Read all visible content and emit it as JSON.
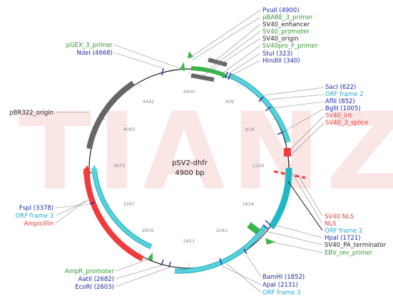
{
  "plasmid": {
    "name": "pSV2-dhfr",
    "length": "4900 bp",
    "watermark": "TIANZ"
  },
  "tick_labels": [
    "4900",
    "409",
    "818",
    "1226",
    "1634",
    "2042",
    "2451",
    "2859",
    "3267",
    "3675",
    "4083",
    "4492"
  ],
  "labels_top_right": [
    {
      "text": "PvuII (4900)",
      "color": "#1c2aa8"
    },
    {
      "text": "pBABE_3_primer",
      "color": "#2f9a2f"
    },
    {
      "text": "SV40_enhancer",
      "color": "#222222"
    },
    {
      "text": "SV40_promoter",
      "color": "#2f9a2f"
    },
    {
      "text": "SV40_origin",
      "color": "#222222"
    },
    {
      "text": "SV40pro_F_primer",
      "color": "#2f9a2f"
    },
    {
      "text": "StuI (323)",
      "color": "#1c2aa8"
    },
    {
      "text": "HindIII (340)",
      "color": "#1c2aa8"
    }
  ],
  "labels_top_left": [
    {
      "text": "pGEX_3_primer",
      "color": "#2f9a2f"
    },
    {
      "text": "NdeI (4668)",
      "color": "#1c2aa8"
    }
  ],
  "labels_right_upper": [
    {
      "text": "SacI (622)",
      "color": "#1c2aa8"
    },
    {
      "text": "ORF frame 2",
      "color": "#2aa7c9"
    },
    {
      "text": "AflII (852)",
      "color": "#1c2aa8"
    },
    {
      "text": "BglII (1005)",
      "color": "#1c2aa8"
    },
    {
      "text": "SV40_int",
      "color": "#e53935"
    },
    {
      "text": "SV40_3_splice",
      "color": "#e53935"
    }
  ],
  "labels_right_lower": [
    {
      "text": "SV40 NLS",
      "color": "#e53935"
    },
    {
      "text": "NLS",
      "color": "#e53935"
    },
    {
      "text": "ORF frame 2",
      "color": "#2aa7c9"
    },
    {
      "text": "HpaI (1721)",
      "color": "#1c2aa8"
    },
    {
      "text": "SV40_PA_terminator",
      "color": "#222222"
    },
    {
      "text": "EBV_rev_primer",
      "color": "#2f9a2f"
    }
  ],
  "labels_left": [
    {
      "text": "pBR322_origin",
      "color": "#222222"
    }
  ],
  "labels_left_lower": [
    {
      "text": "FspI (3378)",
      "color": "#1c2aa8"
    },
    {
      "text": "ORF frame 3",
      "color": "#2aa7c9"
    },
    {
      "text": "Ampicillin",
      "color": "#e53935"
    }
  ],
  "labels_bottom_left": [
    {
      "text": "AmpR_promoter",
      "color": "#2f9a2f"
    },
    {
      "text": "AatII (2682)",
      "color": "#1c2aa8"
    },
    {
      "text": "EcoRI (2603)",
      "color": "#1c2aa8"
    }
  ],
  "labels_bottom_right": [
    {
      "text": "BamHI (1852)",
      "color": "#1c2aa8"
    },
    {
      "text": "ApaI (2131)",
      "color": "#1c2aa8"
    },
    {
      "text": "ORF frame 3",
      "color": "#2aa7c9"
    }
  ],
  "colors": {
    "backbone": "#222222",
    "enzyme_tick": "#1c2aa8",
    "orf": "#55d3d8",
    "promoter_green": "#39b54a",
    "origin_gray": "#666666",
    "ampicillin_red": "#ef3b3b",
    "watermark": "#fbe6e6"
  }
}
